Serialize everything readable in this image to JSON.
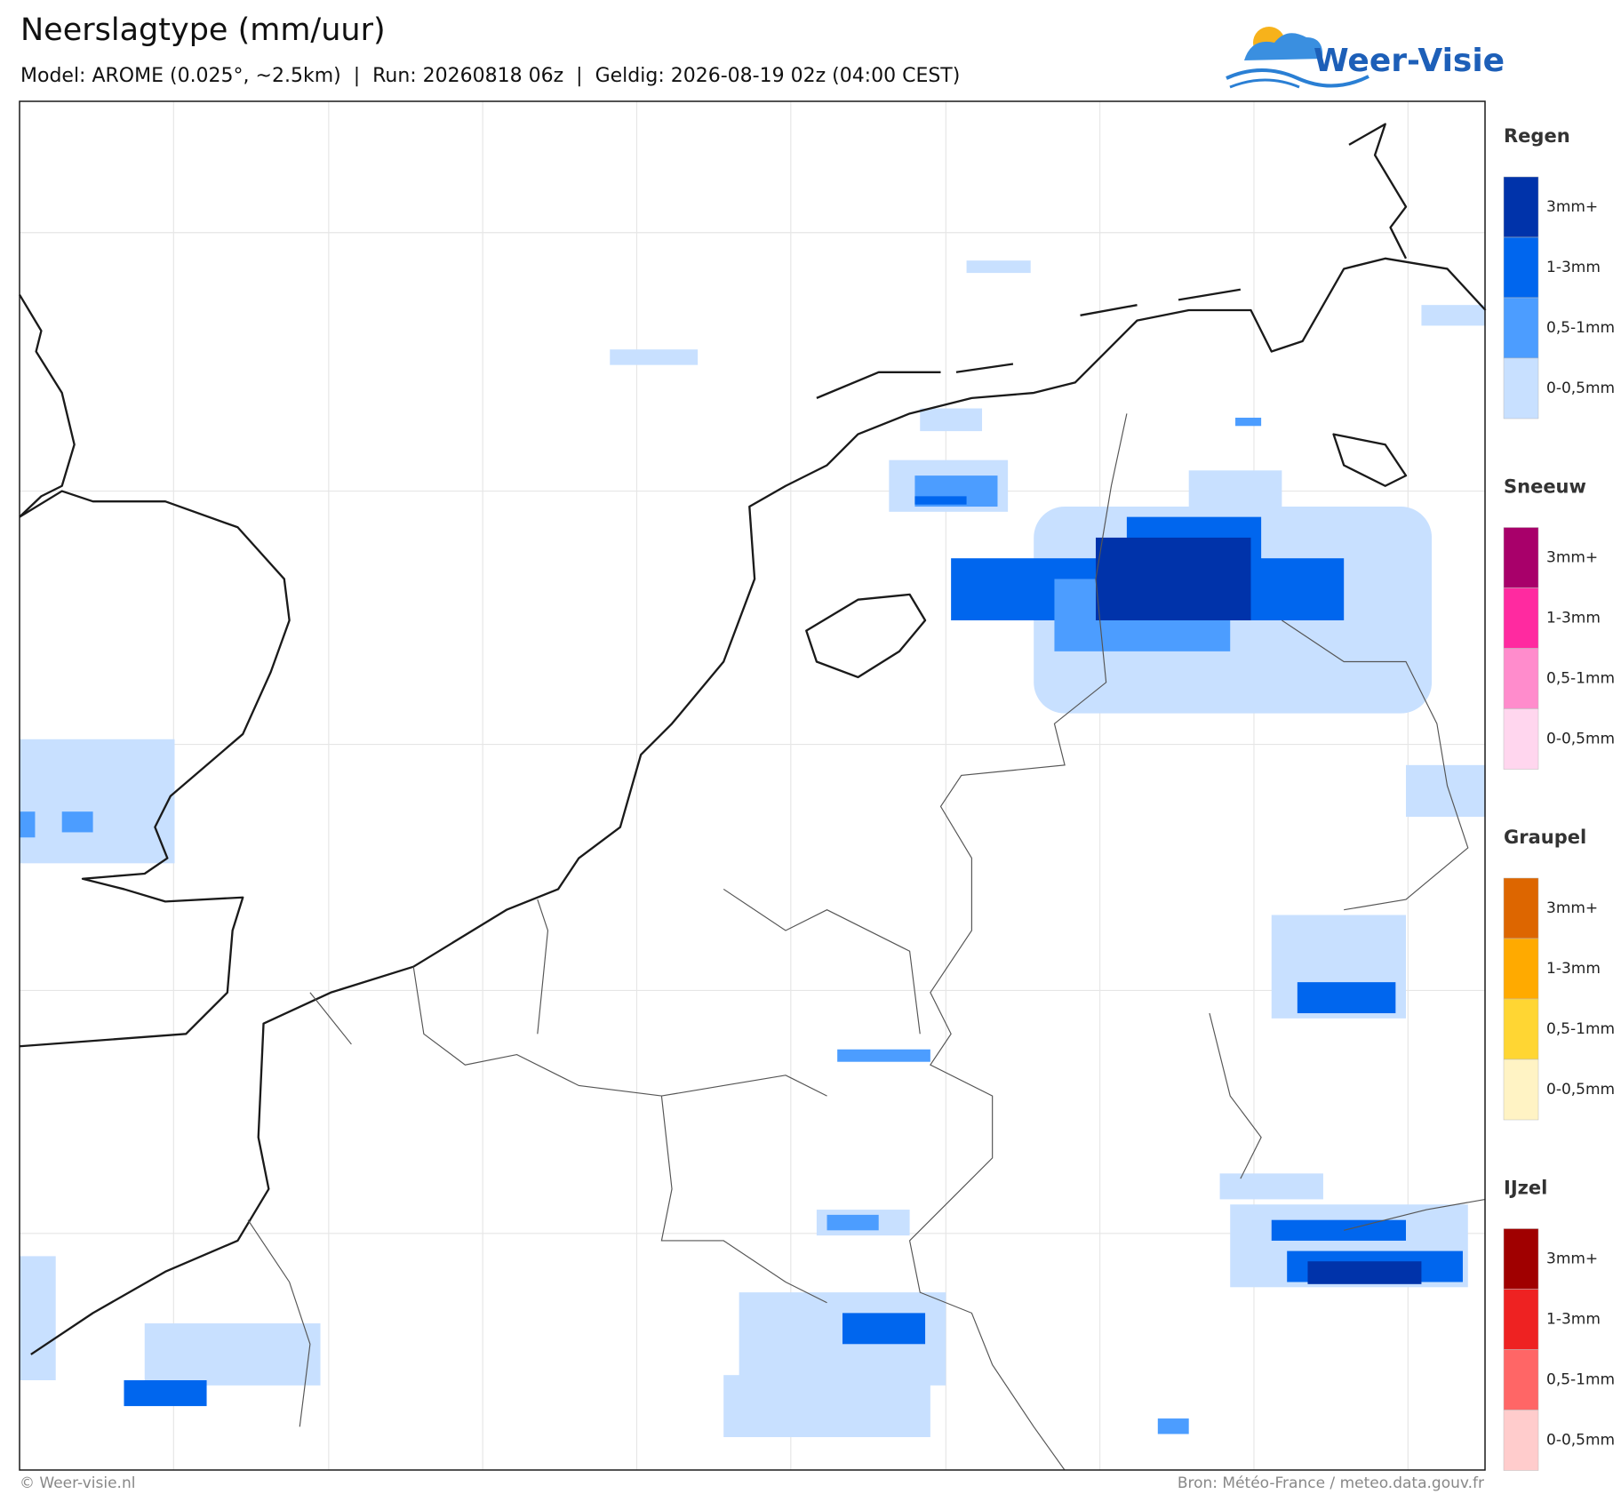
{
  "header": {
    "title": "Neerslagtype (mm/uur)",
    "subtitle": "Model: AROME (0.025°, ~2.5km)  |  Run: 20260818 06z  |  Geldig: 2026-08-19 02z (04:00 CEST)"
  },
  "logo": {
    "text": "Weer-Visie"
  },
  "legend": {
    "groups": [
      {
        "title": "Regen",
        "items": [
          {
            "label": "3mm+",
            "color": "#0033aa"
          },
          {
            "label": "1-3mm",
            "color": "#0066ee"
          },
          {
            "label": "0,5-1mm",
            "color": "#4c9dff"
          },
          {
            "label": "0-0,5mm",
            "color": "#c8e0ff"
          }
        ]
      },
      {
        "title": "Sneeuw",
        "items": [
          {
            "label": "3mm+",
            "color": "#a8006a"
          },
          {
            "label": "1-3mm",
            "color": "#ff2aa0"
          },
          {
            "label": "0,5-1mm",
            "color": "#ff8ccc"
          },
          {
            "label": "0-0,5mm",
            "color": "#ffd6ee"
          }
        ]
      },
      {
        "title": "Graupel",
        "items": [
          {
            "label": "3mm+",
            "color": "#dd6600"
          },
          {
            "label": "1-3mm",
            "color": "#ffaa00"
          },
          {
            "label": "0,5-1mm",
            "color": "#ffd633"
          },
          {
            "label": "0-0,5mm",
            "color": "#fff3c4"
          }
        ]
      },
      {
        "title": "IJzel",
        "items": [
          {
            "label": "3mm+",
            "color": "#a00000"
          },
          {
            "label": "1-3mm",
            "color": "#ee2222"
          },
          {
            "label": "0,5-1mm",
            "color": "#ff6666"
          },
          {
            "label": "0-0,5mm",
            "color": "#ffcccc"
          }
        ]
      }
    ]
  },
  "footer": {
    "left": "© Weer-visie.nl",
    "right": "Bron: Météo-France / meteo.data.gouv.fr"
  }
}
